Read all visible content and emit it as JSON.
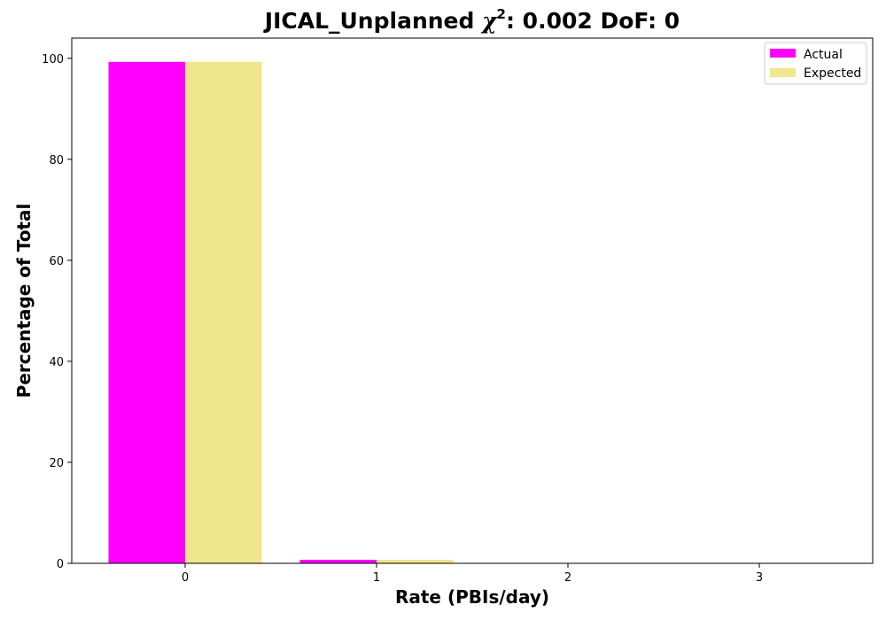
{
  "chart_data": {
    "type": "bar",
    "title_parts": {
      "prefix": "JICAL_Unplanned ",
      "chi_symbol": "χ",
      "superscript": "2",
      "suffix": ": 0.002 DoF: 0"
    },
    "xlabel": "Rate (PBIs/day)",
    "ylabel": "Percentage of Total",
    "categories": [
      "0",
      "1",
      "2",
      "3"
    ],
    "ylim": [
      0,
      104
    ],
    "yticks": [
      "0",
      "20",
      "40",
      "60",
      "80",
      "100"
    ],
    "series": [
      {
        "name": "Actual",
        "color": "#ff00ff",
        "values": [
          99.3,
          0.7,
          0.0,
          0.0
        ]
      },
      {
        "name": "Expected",
        "color": "#f0e68c",
        "values": [
          99.3,
          0.7,
          0.0,
          0.0
        ]
      }
    ],
    "legend_position": "top-right",
    "grid": false
  }
}
